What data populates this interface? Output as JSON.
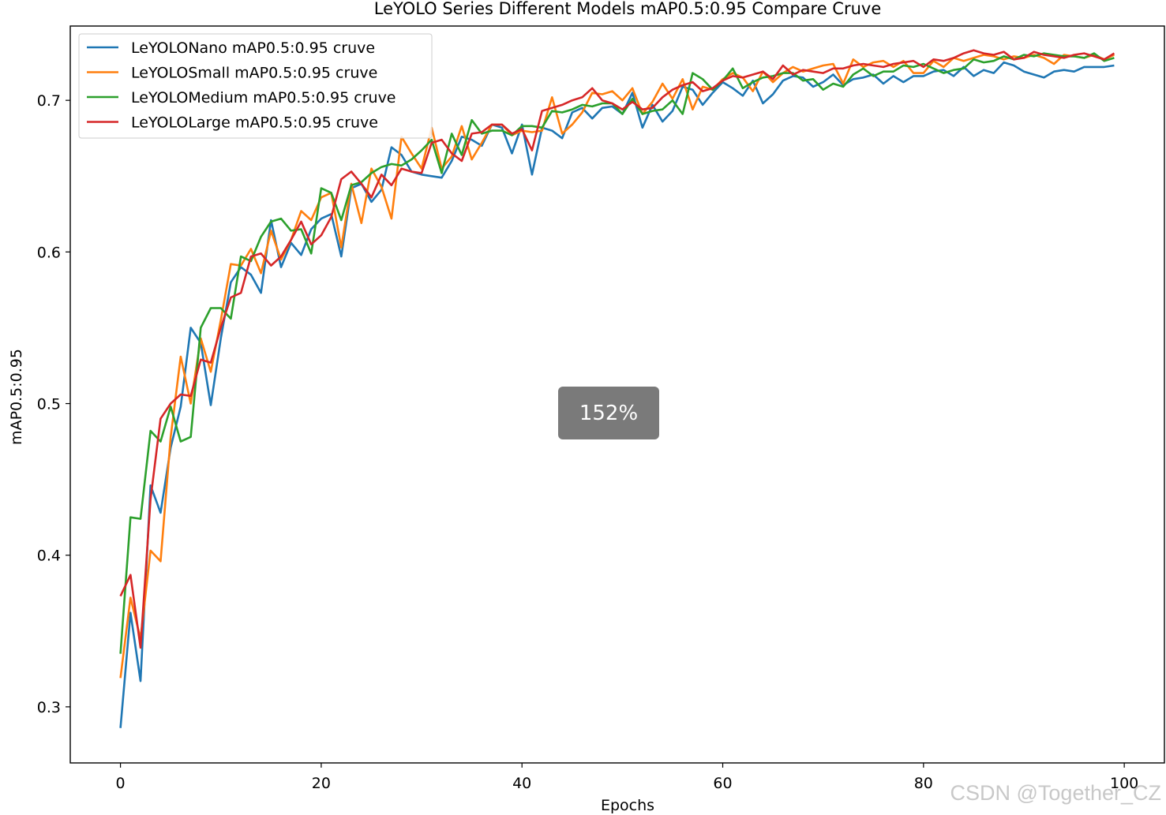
{
  "viewer": {
    "zoom_label": "152%",
    "watermark": "CSDN @Together_CZ"
  },
  "chart_data": {
    "type": "line",
    "title": "LeYOLO Series Different Models mAP0.5:0.95 Compare Cruve",
    "xlabel": "Epochs",
    "ylabel": "mAP0.5:0.95",
    "xlim": [
      -5,
      104
    ],
    "ylim": [
      0.263,
      0.749
    ],
    "xticks": [
      0,
      20,
      40,
      60,
      80,
      100
    ],
    "yticks": [
      0.3,
      0.4,
      0.5,
      0.6,
      0.7
    ],
    "grid": false,
    "legend_position": "top-left",
    "x": [
      0,
      1,
      2,
      3,
      4,
      5,
      6,
      7,
      8,
      9,
      10,
      11,
      12,
      13,
      14,
      15,
      16,
      17,
      18,
      19,
      20,
      21,
      22,
      23,
      24,
      25,
      26,
      27,
      28,
      29,
      30,
      31,
      32,
      33,
      34,
      35,
      36,
      37,
      38,
      39,
      40,
      41,
      42,
      43,
      44,
      45,
      46,
      47,
      48,
      49,
      50,
      51,
      52,
      53,
      54,
      55,
      56,
      57,
      58,
      59,
      60,
      61,
      62,
      63,
      64,
      65,
      66,
      67,
      68,
      69,
      70,
      71,
      72,
      73,
      74,
      75,
      76,
      77,
      78,
      79,
      80,
      81,
      82,
      83,
      84,
      85,
      86,
      87,
      88,
      89,
      90,
      91,
      92,
      93,
      94,
      95,
      96,
      97,
      98,
      99
    ],
    "series": [
      {
        "name": "LeYOLONano mAP0.5:0.95 cruve",
        "color": "#1f77b4",
        "values": [
          0.286,
          0.362,
          0.317,
          0.446,
          0.428,
          0.471,
          0.498,
          0.55,
          0.54,
          0.499,
          0.543,
          0.58,
          0.59,
          0.585,
          0.573,
          0.621,
          0.59,
          0.606,
          0.598,
          0.615,
          0.622,
          0.625,
          0.597,
          0.642,
          0.645,
          0.633,
          0.641,
          0.669,
          0.664,
          0.653,
          0.651,
          0.65,
          0.649,
          0.66,
          0.676,
          0.674,
          0.67,
          0.684,
          0.682,
          0.665,
          0.684,
          0.651,
          0.682,
          0.68,
          0.675,
          0.692,
          0.695,
          0.688,
          0.695,
          0.696,
          0.691,
          0.705,
          0.682,
          0.697,
          0.686,
          0.693,
          0.709,
          0.707,
          0.697,
          0.705,
          0.712,
          0.708,
          0.703,
          0.713,
          0.698,
          0.704,
          0.713,
          0.716,
          0.715,
          0.709,
          0.712,
          0.717,
          0.71,
          0.714,
          0.715,
          0.717,
          0.711,
          0.716,
          0.712,
          0.716,
          0.716,
          0.719,
          0.72,
          0.716,
          0.722,
          0.716,
          0.72,
          0.718,
          0.725,
          0.723,
          0.719,
          0.717,
          0.715,
          0.719,
          0.72,
          0.719,
          0.722,
          0.722,
          0.722,
          0.723
        ]
      },
      {
        "name": "LeYOLOSmall mAP0.5:0.95 cruve",
        "color": "#ff7f0e",
        "values": [
          0.319,
          0.372,
          0.345,
          0.403,
          0.396,
          0.478,
          0.531,
          0.5,
          0.543,
          0.521,
          0.555,
          0.592,
          0.591,
          0.602,
          0.586,
          0.614,
          0.595,
          0.608,
          0.627,
          0.621,
          0.636,
          0.639,
          0.603,
          0.645,
          0.619,
          0.655,
          0.643,
          0.622,
          0.676,
          0.665,
          0.655,
          0.682,
          0.655,
          0.663,
          0.683,
          0.661,
          0.672,
          0.684,
          0.684,
          0.677,
          0.68,
          0.679,
          0.68,
          0.702,
          0.678,
          0.684,
          0.692,
          0.705,
          0.704,
          0.706,
          0.7,
          0.708,
          0.691,
          0.699,
          0.711,
          0.701,
          0.714,
          0.694,
          0.709,
          0.707,
          0.714,
          0.718,
          0.715,
          0.706,
          0.719,
          0.712,
          0.718,
          0.722,
          0.719,
          0.721,
          0.723,
          0.724,
          0.711,
          0.727,
          0.722,
          0.725,
          0.726,
          0.722,
          0.726,
          0.718,
          0.718,
          0.726,
          0.722,
          0.728,
          0.726,
          0.728,
          0.73,
          0.729,
          0.727,
          0.729,
          0.728,
          0.73,
          0.728,
          0.724,
          0.73,
          0.729,
          0.728,
          0.73,
          0.727,
          0.73
        ]
      },
      {
        "name": "LeYOLOMedium mAP0.5:0.95 cruve",
        "color": "#2ca02c",
        "values": [
          0.335,
          0.425,
          0.424,
          0.482,
          0.475,
          0.498,
          0.475,
          0.478,
          0.55,
          0.563,
          0.563,
          0.556,
          0.597,
          0.594,
          0.61,
          0.62,
          0.622,
          0.614,
          0.615,
          0.599,
          0.642,
          0.639,
          0.621,
          0.644,
          0.646,
          0.652,
          0.656,
          0.658,
          0.657,
          0.661,
          0.667,
          0.674,
          0.652,
          0.678,
          0.664,
          0.687,
          0.678,
          0.68,
          0.68,
          0.677,
          0.683,
          0.683,
          0.682,
          0.693,
          0.692,
          0.694,
          0.697,
          0.696,
          0.698,
          0.698,
          0.691,
          0.701,
          0.691,
          0.693,
          0.694,
          0.7,
          0.691,
          0.718,
          0.714,
          0.707,
          0.713,
          0.721,
          0.708,
          0.712,
          0.715,
          0.716,
          0.718,
          0.718,
          0.713,
          0.714,
          0.707,
          0.711,
          0.709,
          0.717,
          0.721,
          0.716,
          0.719,
          0.719,
          0.723,
          0.722,
          0.724,
          0.721,
          0.718,
          0.72,
          0.721,
          0.727,
          0.725,
          0.726,
          0.729,
          0.727,
          0.73,
          0.729,
          0.731,
          0.73,
          0.729,
          0.729,
          0.728,
          0.731,
          0.726,
          0.728
        ]
      },
      {
        "name": "LeYOLOLarge mAP0.5:0.95 cruve",
        "color": "#d62728",
        "values": [
          0.373,
          0.387,
          0.339,
          0.437,
          0.49,
          0.5,
          0.506,
          0.505,
          0.529,
          0.527,
          0.55,
          0.57,
          0.573,
          0.597,
          0.599,
          0.591,
          0.597,
          0.608,
          0.62,
          0.605,
          0.611,
          0.623,
          0.648,
          0.653,
          0.645,
          0.636,
          0.651,
          0.644,
          0.655,
          0.653,
          0.652,
          0.672,
          0.674,
          0.665,
          0.66,
          0.678,
          0.679,
          0.684,
          0.684,
          0.678,
          0.681,
          0.667,
          0.693,
          0.695,
          0.697,
          0.7,
          0.702,
          0.708,
          0.7,
          0.698,
          0.694,
          0.699,
          0.694,
          0.695,
          0.702,
          0.707,
          0.71,
          0.712,
          0.706,
          0.708,
          0.713,
          0.716,
          0.715,
          0.717,
          0.719,
          0.714,
          0.723,
          0.717,
          0.72,
          0.719,
          0.718,
          0.721,
          0.721,
          0.723,
          0.724,
          0.723,
          0.722,
          0.724,
          0.725,
          0.726,
          0.722,
          0.727,
          0.726,
          0.728,
          0.731,
          0.733,
          0.731,
          0.73,
          0.732,
          0.727,
          0.728,
          0.732,
          0.73,
          0.729,
          0.728,
          0.73,
          0.731,
          0.729,
          0.727,
          0.731
        ]
      }
    ]
  }
}
